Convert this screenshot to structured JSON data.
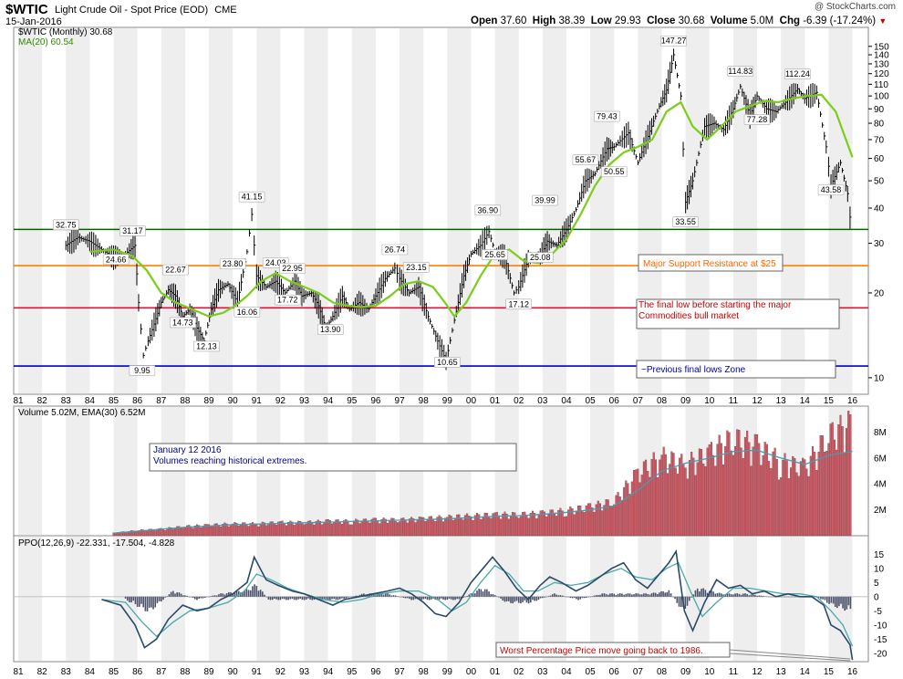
{
  "header": {
    "symbol": "$WTIC",
    "description": "Light Crude Oil - Spot Price (EOD)",
    "exchange": "CME",
    "date": "15-Jan-2016",
    "watermark": "@ StockCharts.com",
    "open_label": "Open",
    "open": "37.60",
    "high_label": "High",
    "high": "38.39",
    "low_label": "Low",
    "low": "29.93",
    "close_label": "Close",
    "close": "30.68",
    "volume_label": "Volume",
    "volume": "5.0M",
    "chg_label": "Chg",
    "chg": "-6.39 (-17.24%)",
    "chg_icon": "down-triangle-icon"
  },
  "colors": {
    "price_bar": "#000000",
    "ma": "#7ccd1a",
    "green_line": "#006400",
    "orange_line": "#ff7f00",
    "red_line": "#dc143c",
    "blue_line": "#0000cd",
    "volume_bar": "#e05562",
    "ema_volume": "#4a9ab0",
    "ppo_line": "#2a4a6a",
    "ppo_signal": "#4aa8a8",
    "histogram": "#4a5068",
    "panel_bg": "#ffffff",
    "stripe_bg": "#eeeeee"
  },
  "chart_data": [
    {
      "type": "line",
      "name": "price_panel",
      "legend": [
        "$WTIC (Monthly) 30.68",
        "MA(20) 60.54"
      ],
      "y_scale": "log",
      "ylim": [
        9,
        165
      ],
      "y_ticks": [
        10,
        20,
        30,
        40,
        50,
        60,
        70,
        80,
        90,
        100,
        110,
        120,
        130,
        140,
        150
      ],
      "x_ticks": [
        "81",
        "82",
        "83",
        "84",
        "85",
        "86",
        "87",
        "88",
        "89",
        "90",
        "91",
        "92",
        "93",
        "94",
        "95",
        "96",
        "97",
        "98",
        "99",
        "00",
        "01",
        "02",
        "03",
        "04",
        "05",
        "06",
        "07",
        "08",
        "09",
        "10",
        "11",
        "12",
        "13",
        "14",
        "15",
        "16"
      ],
      "series": [
        {
          "name": "$WTIC (Monthly)",
          "kind": "ohlc",
          "x": [
            1983.0,
            1983.5,
            1984.0,
            1984.5,
            1985.0,
            1985.5,
            1985.9,
            1986.05,
            1986.25,
            1986.45,
            1986.7,
            1987.0,
            1987.3,
            1987.6,
            1987.9,
            1988.2,
            1988.5,
            1988.8,
            1989.1,
            1989.4,
            1989.8,
            1990.2,
            1990.6,
            1990.8,
            1991.0,
            1991.4,
            1991.8,
            1992.2,
            1992.6,
            1992.9,
            1993.3,
            1993.6,
            1993.9,
            1994.2,
            1994.6,
            1994.9,
            1995.3,
            1995.7,
            1996.0,
            1996.4,
            1996.8,
            1997.0,
            1997.4,
            1997.8,
            1998.2,
            1998.6,
            1998.95,
            1999.3,
            1999.7,
            2000.0,
            2000.4,
            2000.75,
            2001.0,
            2001.4,
            2001.8,
            2002.0,
            2002.4,
            2002.9,
            2003.2,
            2003.6,
            2004.0,
            2004.4,
            2004.8,
            2005.2,
            2005.7,
            2006.0,
            2006.6,
            2007.0,
            2007.5,
            2007.9,
            2008.2,
            2008.5,
            2008.8,
            2009.0,
            2009.3,
            2009.8,
            2010.2,
            2010.6,
            2011.0,
            2011.3,
            2011.7,
            2012.0,
            2012.4,
            2012.8,
            2013.2,
            2013.7,
            2014.0,
            2014.5,
            2014.9,
            2015.1,
            2015.5,
            2015.8,
            2016.0
          ],
          "values": [
            29.5,
            31.5,
            30.5,
            28.5,
            26.8,
            27.5,
            29.5,
            18.5,
            12.0,
            13.5,
            15.5,
            18.5,
            20.5,
            19.5,
            16.5,
            17.5,
            15.0,
            13.5,
            17.5,
            20.5,
            21.5,
            18.5,
            28.0,
            38.0,
            23.0,
            21.0,
            22.0,
            20.0,
            22.0,
            19.5,
            20.0,
            18.0,
            15.0,
            16.5,
            19.5,
            17.5,
            18.5,
            17.5,
            19.5,
            22.5,
            24.5,
            22.5,
            20.0,
            21.0,
            16.5,
            13.5,
            11.5,
            16.0,
            23.0,
            27.5,
            29.5,
            33.0,
            28.0,
            27.0,
            20.0,
            21.0,
            26.5,
            27.0,
            30.5,
            29.5,
            33.5,
            39.5,
            50.0,
            53.0,
            65.0,
            66.0,
            74.0,
            58.0,
            75.0,
            92.0,
            105.0,
            140.0,
            100.0,
            42.0,
            50.0,
            78.0,
            80.0,
            76.0,
            90.0,
            108.0,
            85.0,
            100.0,
            90.0,
            88.0,
            95.0,
            106.0,
            98.0,
            103.0,
            66.0,
            48.0,
            58.0,
            45.0,
            30.68
          ]
        },
        {
          "name": "MA(20)",
          "x": [
            1984.0,
            1985.0,
            1985.8,
            1986.4,
            1987.0,
            1987.6,
            1988.3,
            1989.0,
            1989.6,
            1990.1,
            1990.6,
            1991.2,
            1991.8,
            1992.4,
            1993.0,
            1993.6,
            1994.2,
            1994.8,
            1995.4,
            1996.0,
            1996.6,
            1997.2,
            1997.8,
            1998.4,
            1998.9,
            1999.3,
            1999.8,
            2000.4,
            2001.0,
            2001.6,
            2002.2,
            2002.8,
            2003.4,
            2004.0,
            2004.6,
            2005.2,
            2005.8,
            2006.4,
            2007.0,
            2007.6,
            2008.2,
            2008.8,
            2009.3,
            2009.9,
            2010.5,
            2011.1,
            2011.7,
            2012.3,
            2012.9,
            2013.5,
            2014.1,
            2014.7,
            2015.3,
            2016.0
          ],
          "values": [
            28.0,
            28.5,
            27.0,
            24.0,
            20.0,
            18.5,
            17.5,
            16.5,
            17.0,
            18.0,
            19.5,
            22.0,
            23.5,
            22.0,
            21.0,
            20.0,
            18.5,
            18.0,
            17.8,
            18.0,
            19.5,
            21.5,
            22.0,
            21.0,
            18.5,
            16.5,
            18.5,
            23.0,
            27.5,
            28.5,
            26.0,
            25.5,
            27.5,
            31.0,
            38.0,
            48.0,
            57.0,
            63.0,
            66.0,
            70.0,
            88.0,
            95.0,
            78.0,
            70.0,
            78.0,
            88.0,
            92.0,
            96.0,
            95.0,
            98.0,
            100.0,
            101.0,
            88.0,
            60.54
          ]
        }
      ],
      "peak_labels": [
        {
          "x": 1983.0,
          "value": 32.75
        },
        {
          "x": 1985.8,
          "value": 31.17
        },
        {
          "x": 1985.1,
          "value": 24.66
        },
        {
          "x": 1986.2,
          "value": 9.95
        },
        {
          "x": 1987.6,
          "value": 22.67
        },
        {
          "x": 1987.9,
          "value": 14.73
        },
        {
          "x": 1988.9,
          "value": 12.13
        },
        {
          "x": 1990.0,
          "value": 23.8
        },
        {
          "x": 1990.6,
          "value": 16.06
        },
        {
          "x": 1990.8,
          "value": 41.15
        },
        {
          "x": 1991.8,
          "value": 24.03
        },
        {
          "x": 1992.3,
          "value": 17.72
        },
        {
          "x": 1992.5,
          "value": 22.95
        },
        {
          "x": 1994.1,
          "value": 13.9
        },
        {
          "x": 1996.8,
          "value": 26.74
        },
        {
          "x": 1997.7,
          "value": 23.15
        },
        {
          "x": 1999.0,
          "value": 10.65
        },
        {
          "x": 2000.7,
          "value": 36.9
        },
        {
          "x": 2001.0,
          "value": 25.65
        },
        {
          "x": 2002.0,
          "value": 17.12
        },
        {
          "x": 2002.9,
          "value": 25.08
        },
        {
          "x": 2003.1,
          "value": 39.99
        },
        {
          "x": 2004.8,
          "value": 55.67
        },
        {
          "x": 2005.7,
          "value": 79.43
        },
        {
          "x": 2006.0,
          "value": 50.55
        },
        {
          "x": 2008.5,
          "value": 147.27
        },
        {
          "x": 2009.0,
          "value": 33.55
        },
        {
          "x": 2011.3,
          "value": 114.83
        },
        {
          "x": 2012.0,
          "value": 77.28
        },
        {
          "x": 2013.7,
          "value": 112.24
        },
        {
          "x": 2015.1,
          "value": 43.58
        }
      ],
      "horizontal_lines": [
        {
          "value": 33.6,
          "color": "#006400"
        },
        {
          "value": 25.0,
          "color": "#ff7f00",
          "label": "Major Support Resistance at $25"
        },
        {
          "value": 17.7,
          "color": "#dc143c",
          "label": "The final low before starting the major Commodities bull market"
        },
        {
          "value": 11.0,
          "color": "#0000cd",
          "label": "~Previous final lows Zone"
        }
      ]
    },
    {
      "type": "bar",
      "name": "volume_panel",
      "legend": "Volume 5.02M, EMA(30) 6.52M",
      "ylim": [
        0,
        9.3
      ],
      "y_ticks": [
        2,
        4,
        6,
        8
      ],
      "y_tick_labels": [
        "2M",
        "4M",
        "6M",
        "8M"
      ],
      "annotation": "January 12 2016\nVolumes reaching historical extremes.",
      "x": [
        1985,
        1986,
        1987,
        1988,
        1989,
        1990,
        1991,
        1992,
        1993,
        1994,
        1995,
        1996,
        1997,
        1998,
        1999,
        2000,
        2001,
        2002,
        2003,
        2004,
        2005,
        2006,
        2007,
        2008,
        2009,
        2010,
        2011,
        2012,
        2013,
        2014,
        2015,
        2016
      ],
      "values": [
        0.2,
        0.4,
        0.5,
        0.7,
        0.8,
        0.9,
        0.9,
        1.0,
        1.0,
        1.1,
        1.1,
        1.2,
        1.2,
        1.3,
        1.4,
        1.5,
        1.6,
        1.6,
        1.7,
        1.9,
        2.2,
        2.6,
        4.8,
        6.0,
        5.4,
        6.3,
        7.4,
        6.8,
        5.6,
        5.2,
        7.6,
        8.6
      ],
      "ema": [
        0.2,
        0.35,
        0.5,
        0.65,
        0.75,
        0.85,
        0.9,
        0.95,
        1.0,
        1.05,
        1.1,
        1.15,
        1.2,
        1.25,
        1.3,
        1.4,
        1.5,
        1.55,
        1.65,
        1.8,
        2.0,
        2.3,
        3.5,
        5.0,
        5.6,
        6.0,
        6.5,
        6.6,
        6.0,
        5.5,
        6.2,
        6.52
      ]
    },
    {
      "type": "line",
      "name": "ppo_panel",
      "legend": "PPO(12,26,9) -22.331, -17.504, -4.828",
      "ylim": [
        -22,
        18
      ],
      "y_ticks": [
        15,
        10,
        5,
        0,
        -5,
        -10,
        -15,
        -20
      ],
      "annotation": "Worst Percentage Price move going back to 1986.",
      "series": [
        {
          "name": "PPO",
          "x": [
            1984.5,
            1985.3,
            1985.9,
            1986.3,
            1986.8,
            1987.3,
            1987.9,
            1988.5,
            1989.0,
            1989.5,
            1990.0,
            1990.6,
            1990.9,
            1991.4,
            1991.9,
            1992.5,
            1993.0,
            1993.6,
            1994.2,
            1994.7,
            1995.3,
            1995.9,
            1996.5,
            1997.0,
            1997.5,
            1998.0,
            1998.5,
            1998.95,
            1999.5,
            2000.0,
            2000.5,
            2000.9,
            2001.4,
            2001.9,
            2002.4,
            2002.9,
            2003.3,
            2003.8,
            2004.4,
            2004.9,
            2005.4,
            2005.9,
            2006.4,
            2006.9,
            2007.4,
            2007.9,
            2008.3,
            2008.6,
            2008.95,
            2009.3,
            2009.8,
            2010.3,
            2010.8,
            2011.3,
            2011.8,
            2012.3,
            2012.8,
            2013.3,
            2013.8,
            2014.3,
            2014.8,
            2015.1,
            2015.5,
            2015.9,
            2016.0
          ],
          "values": [
            -1,
            -3,
            -10,
            -18,
            -15,
            -8,
            -3,
            -5,
            -4,
            -1,
            1,
            5,
            14,
            6,
            4,
            2,
            1,
            -1,
            -3,
            -1,
            0,
            1,
            2,
            3,
            1,
            -2,
            -6,
            -7,
            -2,
            5,
            10,
            14,
            9,
            3,
            -1,
            4,
            7,
            5,
            2,
            4,
            7,
            10,
            12,
            6,
            3,
            8,
            12,
            16,
            -5,
            -12,
            -2,
            6,
            3,
            4,
            1,
            2,
            0,
            1,
            0,
            0,
            -3,
            -10,
            -12,
            -17,
            -22.331
          ]
        },
        {
          "name": "Signal",
          "x": [
            1984.5,
            1985.5,
            1986.2,
            1986.8,
            1987.5,
            1988.2,
            1989.0,
            1989.8,
            1990.5,
            1991.0,
            1991.6,
            1992.3,
            1993.0,
            1993.8,
            1994.6,
            1995.4,
            1996.2,
            1997.0,
            1997.8,
            1998.6,
            1999.2,
            1999.8,
            2000.4,
            2001.0,
            2001.6,
            2002.2,
            2002.8,
            2003.5,
            2004.2,
            2004.9,
            2005.6,
            2006.3,
            2006.9,
            2007.6,
            2008.2,
            2008.7,
            2009.2,
            2009.7,
            2010.3,
            2011.0,
            2011.7,
            2012.4,
            2013.1,
            2013.8,
            2014.5,
            2015.1,
            2015.6,
            2016.0
          ],
          "values": [
            -1,
            -2,
            -9,
            -14,
            -9,
            -5,
            -4,
            -2,
            2,
            8,
            6,
            3,
            1,
            -1,
            -2,
            -1,
            1,
            2,
            2,
            -1,
            -5,
            -2,
            5,
            11,
            8,
            2,
            2,
            5,
            4,
            5,
            8,
            10,
            7,
            6,
            10,
            12,
            2,
            -7,
            -2,
            3,
            3,
            2,
            1,
            1,
            0,
            -5,
            -10,
            -17.504
          ]
        },
        {
          "name": "Histogram",
          "kind": "bar",
          "x": [
            1985.5,
            1986.5,
            1987.5,
            1988.5,
            1989.5,
            1990.5,
            1991.0,
            1991.5,
            1992.5,
            1993.5,
            1994.5,
            1995.5,
            1996.5,
            1997.5,
            1998.5,
            1999.5,
            2000.5,
            2001.5,
            2002.5,
            2003.5,
            2004.5,
            2005.5,
            2006.5,
            2007.5,
            2008.3,
            2008.9,
            2009.5,
            2010.5,
            2011.5,
            2012.5,
            2013.5,
            2014.5,
            2015.2,
            2016.0
          ],
          "values": [
            -1,
            -5,
            2,
            -1,
            1,
            2,
            4,
            -1,
            -1,
            -1,
            -1,
            1,
            1,
            -1,
            -1,
            -1,
            3,
            -2,
            -2,
            1,
            -1,
            1,
            1,
            1,
            2,
            -5,
            3,
            1,
            1,
            0,
            0,
            0,
            -3,
            -4.828
          ]
        }
      ]
    }
  ]
}
